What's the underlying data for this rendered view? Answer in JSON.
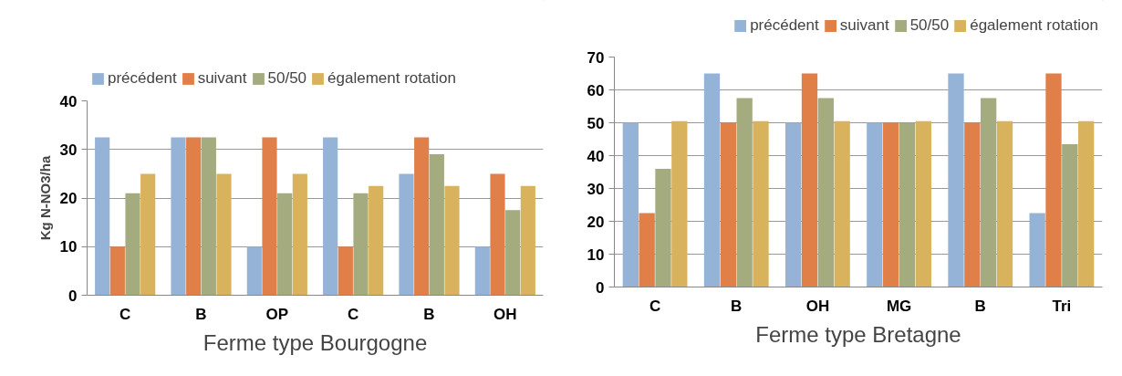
{
  "chart_data": [
    {
      "type": "bar",
      "xlabel": "Ferme type Bourgogne",
      "ylabel": "Kg N-NO3/ha",
      "categories": [
        "C",
        "B",
        "OP",
        "C",
        "B",
        "OH"
      ],
      "series": [
        {
          "name": "précédent",
          "color": "#95b3d7",
          "values": [
            32.5,
            32.5,
            10,
            32.5,
            25,
            10
          ]
        },
        {
          "name": "suivant",
          "color": "#e07f47",
          "values": [
            10,
            32.5,
            32.5,
            10,
            32.5,
            25
          ]
        },
        {
          "name": "50/50",
          "color": "#a3ab7f",
          "values": [
            21,
            32.5,
            21,
            21,
            29,
            17.5
          ]
        },
        {
          "name": "également rotation",
          "color": "#d9b25d",
          "values": [
            25,
            25,
            25,
            22.5,
            22.5,
            22.5
          ]
        }
      ],
      "ylim": [
        0,
        40
      ],
      "yticks": [
        0,
        10,
        20,
        30,
        40
      ],
      "grid": "y",
      "legend": "top"
    },
    {
      "type": "bar",
      "xlabel": "Ferme type Bretagne",
      "categories": [
        "C",
        "B",
        "OH",
        "MG",
        "B",
        "Tri"
      ],
      "series": [
        {
          "name": "précédent",
          "color": "#95b3d7",
          "values": [
            50,
            65,
            50,
            50,
            65,
            22.5
          ]
        },
        {
          "name": "suivant",
          "color": "#e07f47",
          "values": [
            22.5,
            50,
            65,
            50,
            50,
            65
          ]
        },
        {
          "name": "50/50",
          "color": "#a3ab7f",
          "values": [
            36,
            57.5,
            57.5,
            50,
            57.5,
            43.5
          ]
        },
        {
          "name": "également rotation",
          "color": "#d9b25d",
          "values": [
            50.5,
            50.5,
            50.5,
            50.5,
            50.5,
            50.5
          ]
        }
      ],
      "ylim": [
        0,
        70
      ],
      "yticks": [
        0,
        10,
        20,
        30,
        40,
        50,
        60,
        70
      ],
      "grid": "y",
      "legend": "top"
    }
  ]
}
